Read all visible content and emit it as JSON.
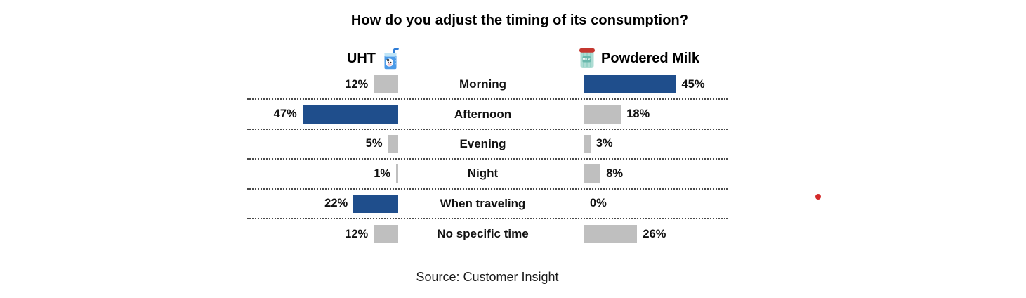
{
  "title": "How do you adjust the timing of its consumption?",
  "source": "Source: Customer Insight",
  "headers": {
    "left": "UHT",
    "right": "Powdered Milk"
  },
  "icons": {
    "left": "milk-carton-icon",
    "right": "milk-can-icon",
    "milk_can_label": "MILK"
  },
  "colors": {
    "highlight": "#1F4E8C",
    "muted": "#BFBFBF",
    "red_dot": "#D42A2A"
  },
  "chart_data": {
    "type": "bar",
    "subtype": "butterfly",
    "orientation": "horizontal",
    "title": "How do you adjust the timing of its consumption?",
    "categories": [
      "Morning",
      "Afternoon",
      "Evening",
      "Night",
      "When traveling",
      "No specific time"
    ],
    "series": [
      {
        "name": "UHT",
        "side": "left",
        "values": [
          12,
          47,
          5,
          1,
          22,
          12
        ],
        "labels": [
          "12%",
          "47%",
          "5%",
          "1%",
          "22%",
          "12%"
        ],
        "highlighted": [
          false,
          true,
          false,
          false,
          true,
          false
        ]
      },
      {
        "name": "Powdered Milk",
        "side": "right",
        "values": [
          45,
          18,
          3,
          8,
          0,
          26
        ],
        "labels": [
          "45%",
          "18%",
          "3%",
          "8%",
          "0%",
          "26%"
        ],
        "highlighted": [
          true,
          false,
          false,
          false,
          false,
          false
        ]
      }
    ],
    "value_unit": "%",
    "value_range": [
      0,
      50
    ],
    "grid": "dotted-row-separators",
    "legend_position": "top-as-headers"
  }
}
